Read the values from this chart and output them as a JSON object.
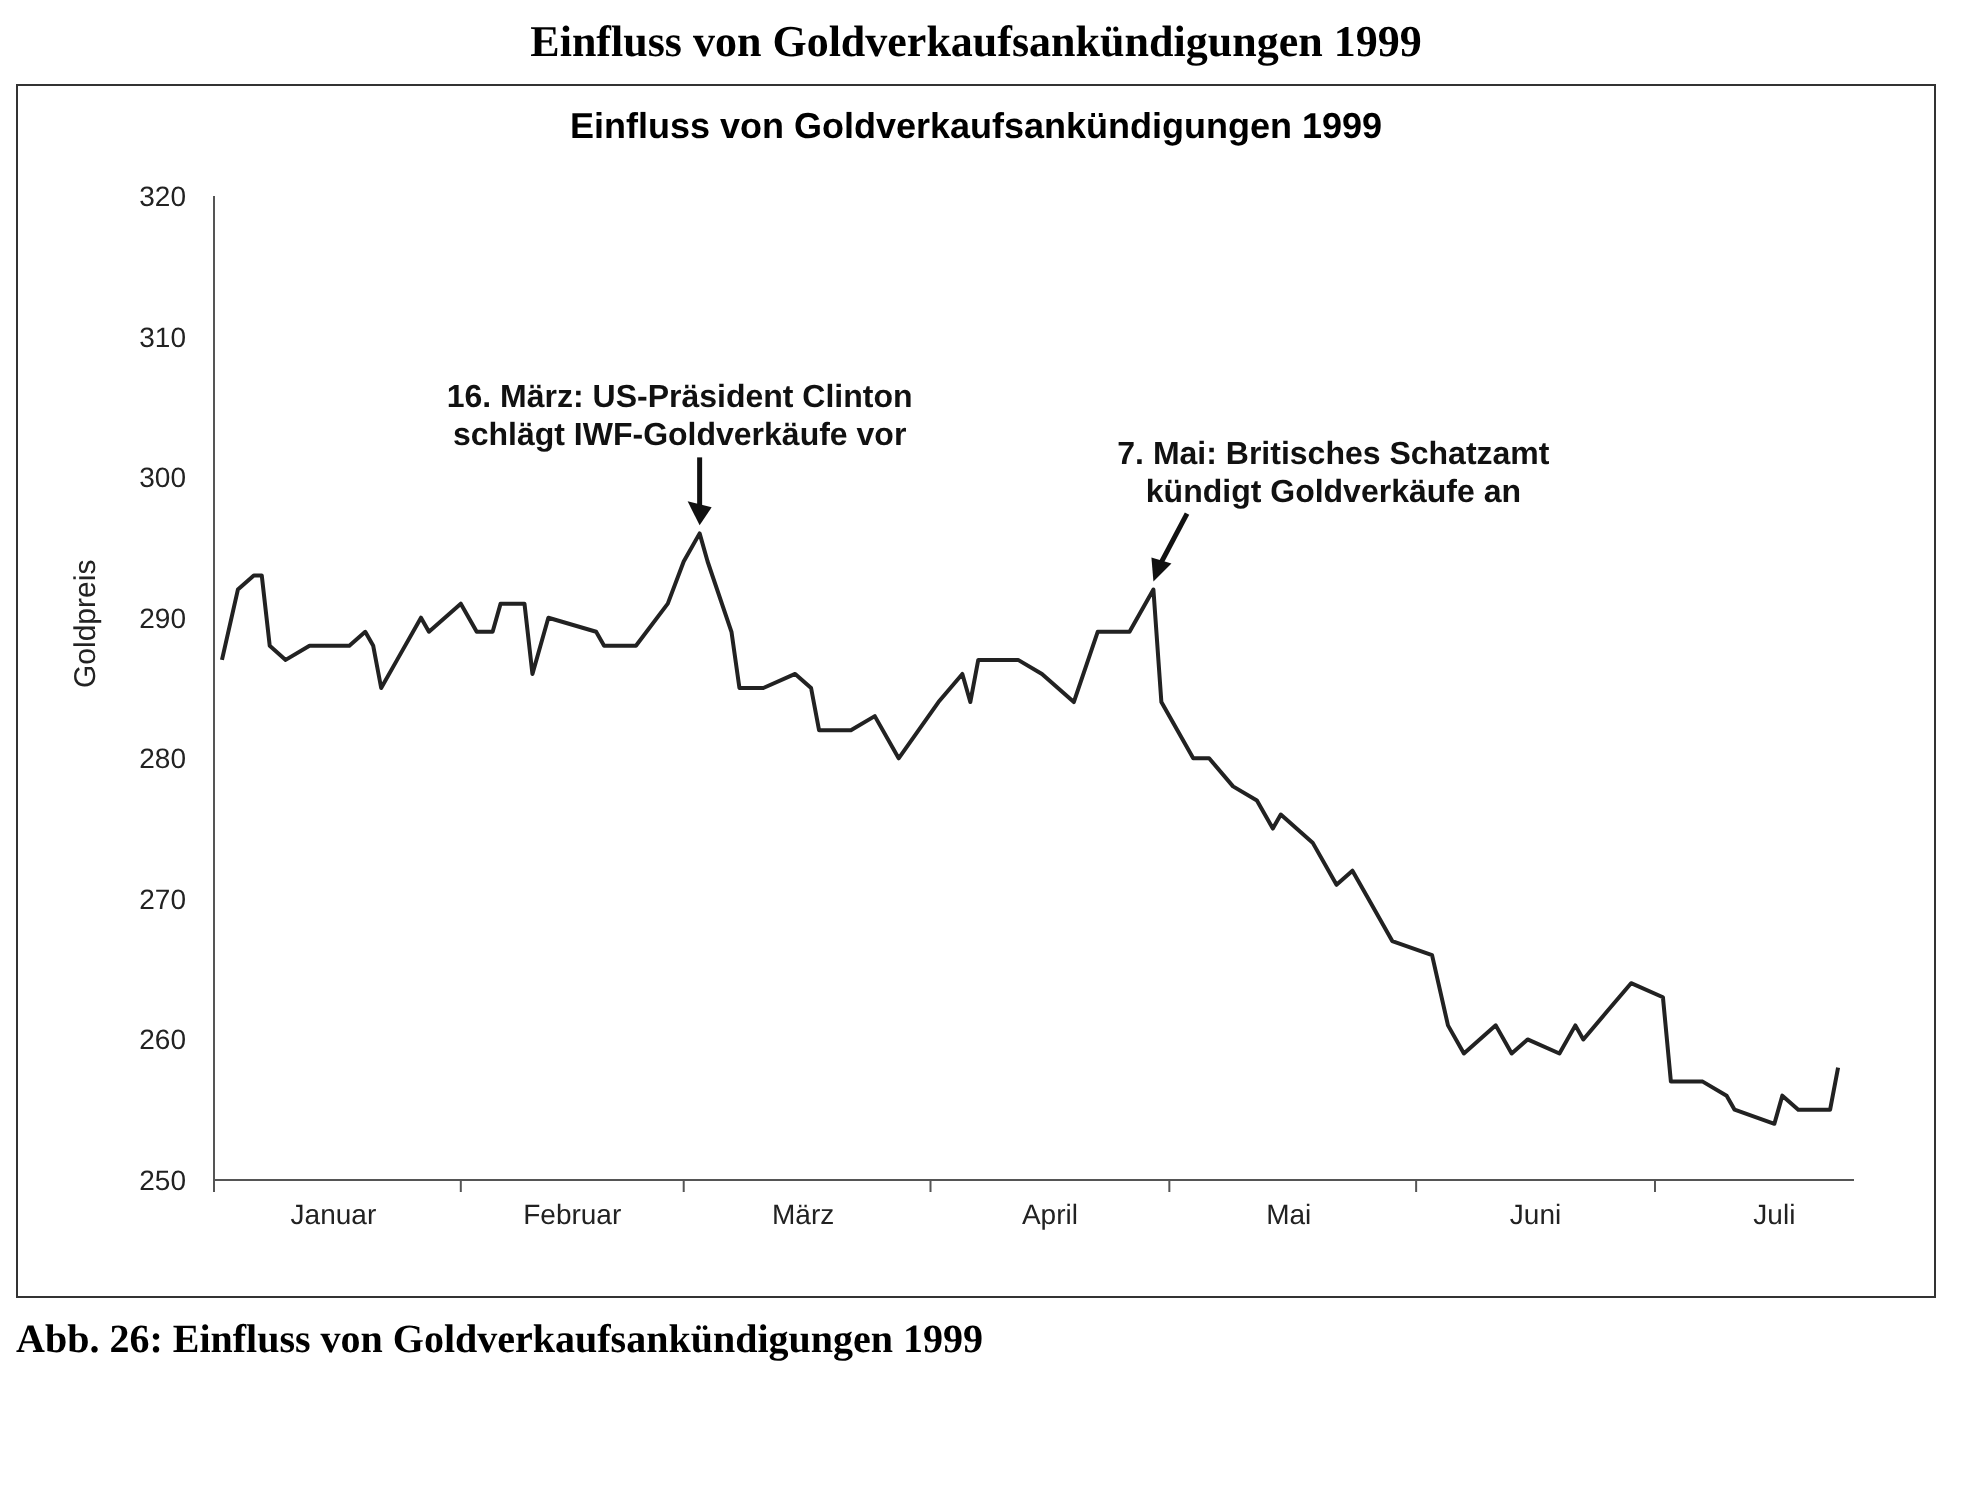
{
  "chart_data": {
    "type": "line",
    "title": "Einfluss von Goldverkaufsankündigungen 1999",
    "ylabel": "Goldpreis",
    "annotations": [
      "Einfluss von Goldverkaufsankündigungen 1999",
      {
        "text": "16. März: US-Präsident Clinton schlägt IWF-Goldverkäufe vor",
        "x": "1999-03-03",
        "y": 296
      },
      {
        "text": "7. Mai: Britisches Schatzamt kündigt Goldverkäufe an",
        "x": "1999-04-29",
        "y": 292
      },
      "Abb. 26: Einfluss von Goldverkaufsankündigungen 1999"
    ],
    "x": [
      "1999-01-02",
      "1999-01-04",
      "1999-01-06",
      "1999-01-07",
      "1999-01-08",
      "1999-01-10",
      "1999-01-13",
      "1999-01-15",
      "1999-01-17",
      "1999-01-18",
      "1999-01-20",
      "1999-01-21",
      "1999-01-22",
      "1999-01-24",
      "1999-01-27",
      "1999-01-28",
      "1999-01-30",
      "1999-02-01",
      "1999-02-03",
      "1999-02-05",
      "1999-02-06",
      "1999-02-09",
      "1999-02-10",
      "1999-02-12",
      "1999-02-18",
      "1999-02-19",
      "1999-02-23",
      "1999-02-27",
      "1999-03-01",
      "1999-03-03",
      "1999-03-04",
      "1999-03-07",
      "1999-03-08",
      "1999-03-11",
      "1999-03-15",
      "1999-03-17",
      "1999-03-18",
      "1999-03-21",
      "1999-03-22",
      "1999-03-25",
      "1999-03-28",
      "1999-04-02",
      "1999-04-05",
      "1999-04-06",
      "1999-04-07",
      "1999-04-12",
      "1999-04-15",
      "1999-04-19",
      "1999-04-22",
      "1999-04-26",
      "1999-04-29",
      "1999-04-30",
      "1999-05-04",
      "1999-05-06",
      "1999-05-09",
      "1999-05-12",
      "1999-05-14",
      "1999-05-15",
      "1999-05-19",
      "1999-05-22",
      "1999-05-24",
      "1999-05-26",
      "1999-05-29",
      "1999-06-03",
      "1999-06-05",
      "1999-06-07",
      "1999-06-11",
      "1999-06-13",
      "1999-06-15",
      "1999-06-19",
      "1999-06-21",
      "1999-06-22",
      "1999-06-25",
      "1999-06-28",
      "1999-07-02",
      "1999-07-03",
      "1999-07-07",
      "1999-07-10",
      "1999-07-11",
      "1999-07-16",
      "1999-07-17",
      "1999-07-19",
      "1999-07-23",
      "1999-07-24"
    ],
    "series": [
      {
        "color": "#222222",
        "values": [
          287,
          292,
          293,
          293,
          288,
          287,
          288,
          288,
          288,
          288,
          289,
          288,
          285,
          287,
          290,
          289,
          290,
          291,
          289,
          289,
          291,
          291,
          286,
          290,
          289,
          288,
          288,
          291,
          294,
          296,
          294,
          289,
          285,
          285,
          286,
          285,
          282,
          282,
          282,
          283,
          280,
          284,
          286,
          284,
          287,
          287,
          286,
          284,
          289,
          289,
          292,
          284,
          280,
          280,
          278,
          277,
          275,
          276,
          274,
          271,
          272,
          270,
          267,
          266,
          261,
          259,
          261,
          259,
          260,
          259,
          261,
          260,
          262,
          264,
          263,
          257,
          257,
          256,
          255,
          254,
          256,
          255,
          255,
          258
        ]
      }
    ],
    "xlim": [
      "1999-01-01",
      "1999-07-26"
    ],
    "xticks": [
      {
        "value": "1999-01-01",
        "label": null
      },
      {
        "value": "1999-01-16",
        "label": "Januar"
      },
      {
        "value": "1999-02-01",
        "label": null
      },
      {
        "value": "1999-02-15",
        "label": "Februar"
      },
      {
        "value": "1999-03-01",
        "label": null
      },
      {
        "value": "1999-03-16",
        "label": "März"
      },
      {
        "value": "1999-04-01",
        "label": null
      },
      {
        "value": "1999-04-16",
        "label": "April"
      },
      {
        "value": "1999-05-01",
        "label": null
      },
      {
        "value": "1999-05-16",
        "label": "Mai"
      },
      {
        "value": "1999-06-01",
        "label": null
      },
      {
        "value": "1999-06-16",
        "label": "Juni"
      },
      {
        "value": "1999-07-01",
        "label": null
      },
      {
        "value": "1999-07-16",
        "label": "Juli"
      }
    ],
    "ylim": [
      250,
      320
    ],
    "yticks": [
      250,
      260,
      270,
      280,
      290,
      300,
      310,
      320
    ]
  }
}
